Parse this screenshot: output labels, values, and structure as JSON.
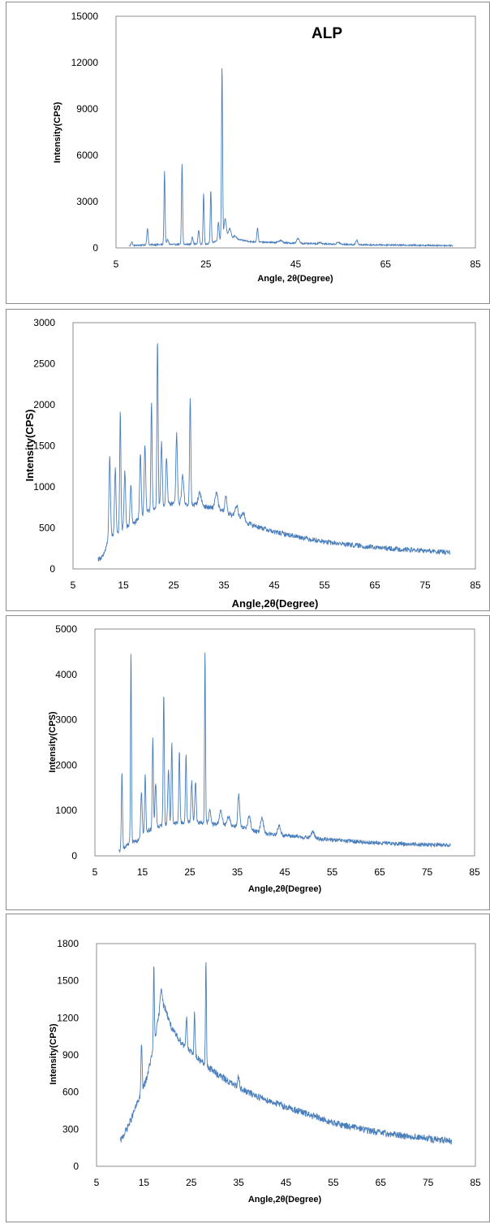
{
  "charts": [
    {
      "type": "line",
      "label": "ALP",
      "xlabel": "Angle, 2θ(Degree)",
      "ylabel": "Intensity(CPS)",
      "xlim": [
        5,
        85
      ],
      "ylim": [
        0,
        15000
      ],
      "x_ticks": [
        "5",
        "25",
        "45",
        "65",
        "85"
      ],
      "y_ticks": [
        "0",
        "3000",
        "6000",
        "9000",
        "12000",
        "15000"
      ],
      "color": "#4a7ebb",
      "x_range": [
        8,
        80
      ],
      "baseline": [
        [
          8,
          150
        ],
        [
          12,
          200
        ],
        [
          25,
          250
        ],
        [
          30,
          650
        ],
        [
          35,
          400
        ],
        [
          45,
          300
        ],
        [
          60,
          200
        ],
        [
          80,
          150
        ]
      ],
      "noise": 45,
      "peaks": [
        [
          8.5,
          250,
          0.15
        ],
        [
          12,
          1050,
          0.15
        ],
        [
          15.8,
          4750,
          0.12
        ],
        [
          16.5,
          300,
          0.2
        ],
        [
          19.7,
          5200,
          0.12
        ],
        [
          22,
          500,
          0.15
        ],
        [
          23.4,
          900,
          0.15
        ],
        [
          24.5,
          3300,
          0.12
        ],
        [
          26.1,
          3400,
          0.12
        ],
        [
          27.8,
          1200,
          0.15
        ],
        [
          28.6,
          11200,
          0.12
        ],
        [
          29.3,
          1300,
          0.25
        ],
        [
          30.3,
          600,
          0.3
        ],
        [
          31.5,
          200,
          0.3
        ],
        [
          36.5,
          900,
          0.15
        ],
        [
          41.6,
          150,
          0.4
        ],
        [
          45.5,
          300,
          0.3
        ],
        [
          50.4,
          100,
          0.3
        ],
        [
          54.5,
          130,
          0.3
        ],
        [
          58.6,
          300,
          0.2
        ]
      ]
    },
    {
      "type": "line",
      "label": "",
      "xlabel": "Angle,2θ(Degree)",
      "ylabel": "Intensity(CPS)",
      "xlim": [
        5,
        85
      ],
      "ylim": [
        0,
        3000
      ],
      "x_ticks": [
        "5",
        "15",
        "25",
        "35",
        "45",
        "55",
        "65",
        "75",
        "85"
      ],
      "y_ticks": [
        "0",
        "500",
        "1000",
        "1500",
        "2000",
        "2500",
        "3000"
      ],
      "color": "#4a7ebb",
      "x_range": [
        10,
        80
      ],
      "baseline": [
        [
          10,
          120
        ],
        [
          11,
          150
        ],
        [
          12,
          350
        ],
        [
          14,
          450
        ],
        [
          17,
          550
        ],
        [
          20,
          700
        ],
        [
          25,
          800
        ],
        [
          30,
          780
        ],
        [
          35,
          700
        ],
        [
          40,
          550
        ],
        [
          45,
          450
        ],
        [
          55,
          330
        ],
        [
          65,
          260
        ],
        [
          80,
          200
        ]
      ],
      "noise": 30,
      "peaks": [
        [
          12.3,
          1000,
          0.15
        ],
        [
          13.4,
          800,
          0.15
        ],
        [
          14.4,
          1450,
          0.12
        ],
        [
          15.3,
          700,
          0.15
        ],
        [
          16.5,
          500,
          0.15
        ],
        [
          18.4,
          800,
          0.15
        ],
        [
          19.3,
          850,
          0.15
        ],
        [
          20.6,
          1350,
          0.12
        ],
        [
          21.8,
          2050,
          0.12
        ],
        [
          22.6,
          800,
          0.15
        ],
        [
          23.6,
          600,
          0.15
        ],
        [
          25.6,
          850,
          0.15
        ],
        [
          26.8,
          350,
          0.2
        ],
        [
          28.3,
          1300,
          0.12
        ],
        [
          30.2,
          150,
          0.3
        ],
        [
          33.5,
          200,
          0.3
        ],
        [
          35.4,
          200,
          0.2
        ],
        [
          37.5,
          150,
          0.3
        ],
        [
          38.8,
          100,
          0.3
        ]
      ]
    },
    {
      "type": "line",
      "label": "",
      "xlabel": "Angle,2θ(Degree)",
      "ylabel": "Intensity(CPS)",
      "xlim": [
        5,
        85
      ],
      "ylim": [
        0,
        5000
      ],
      "x_ticks": [
        "5",
        "15",
        "25",
        "35",
        "45",
        "55",
        "65",
        "75",
        "85"
      ],
      "y_ticks": [
        "0",
        "1000",
        "2000",
        "3000",
        "4000",
        "5000"
      ],
      "color": "#4a7ebb",
      "x_range": [
        10,
        80
      ],
      "baseline": [
        [
          10,
          100
        ],
        [
          11,
          150
        ],
        [
          12,
          250
        ],
        [
          14,
          350
        ],
        [
          16,
          550
        ],
        [
          20,
          700
        ],
        [
          25,
          750
        ],
        [
          30,
          700
        ],
        [
          35,
          650
        ],
        [
          40,
          500
        ],
        [
          45,
          450
        ],
        [
          55,
          350
        ],
        [
          65,
          280
        ],
        [
          80,
          230
        ]
      ],
      "noise": 45,
      "peaks": [
        [
          10.7,
          1700,
          0.12
        ],
        [
          12.6,
          4250,
          0.1
        ],
        [
          14.8,
          1000,
          0.15
        ],
        [
          15.6,
          1300,
          0.12
        ],
        [
          17.2,
          2000,
          0.12
        ],
        [
          17.8,
          1000,
          0.15
        ],
        [
          19.5,
          2900,
          0.12
        ],
        [
          20.5,
          1200,
          0.15
        ],
        [
          21.2,
          1800,
          0.12
        ],
        [
          22.8,
          1600,
          0.12
        ],
        [
          24.2,
          1500,
          0.12
        ],
        [
          25.4,
          900,
          0.15
        ],
        [
          26.2,
          900,
          0.15
        ],
        [
          28.2,
          3800,
          0.1
        ],
        [
          29.2,
          300,
          0.2
        ],
        [
          31.5,
          300,
          0.3
        ],
        [
          33.2,
          200,
          0.3
        ],
        [
          35.3,
          700,
          0.2
        ],
        [
          37.5,
          300,
          0.3
        ],
        [
          40.2,
          350,
          0.3
        ],
        [
          43.8,
          200,
          0.3
        ],
        [
          50.9,
          150,
          0.3
        ]
      ]
    },
    {
      "type": "line",
      "label": "",
      "xlabel": "Angle,2θ(Degree)",
      "ylabel": "Intensity(CPS)",
      "xlim": [
        5,
        85
      ],
      "ylim": [
        0,
        1800
      ],
      "x_ticks": [
        "5",
        "15",
        "25",
        "35",
        "45",
        "55",
        "65",
        "75",
        "85"
      ],
      "y_ticks": [
        "0",
        "300",
        "600",
        "900",
        "1200",
        "1500",
        "1800"
      ],
      "color": "#4a7ebb",
      "x_range": [
        10,
        80
      ],
      "baseline": [
        [
          10,
          200
        ],
        [
          12,
          350
        ],
        [
          14,
          550
        ],
        [
          15.5,
          700
        ],
        [
          17,
          950
        ],
        [
          18.5,
          1300
        ],
        [
          19.5,
          1280
        ],
        [
          21,
          1100
        ],
        [
          24,
          950
        ],
        [
          27,
          850
        ],
        [
          30,
          760
        ],
        [
          35,
          630
        ],
        [
          40,
          550
        ],
        [
          45,
          480
        ],
        [
          55,
          350
        ],
        [
          65,
          270
        ],
        [
          80,
          200
        ]
      ],
      "noise": 28,
      "peaks": [
        [
          14.5,
          400,
          0.12
        ],
        [
          17.1,
          650,
          0.1
        ],
        [
          18.7,
          150,
          0.2
        ],
        [
          24,
          250,
          0.15
        ],
        [
          25.7,
          350,
          0.12
        ],
        [
          28.1,
          850,
          0.1
        ],
        [
          35,
          100,
          0.2
        ]
      ]
    }
  ]
}
